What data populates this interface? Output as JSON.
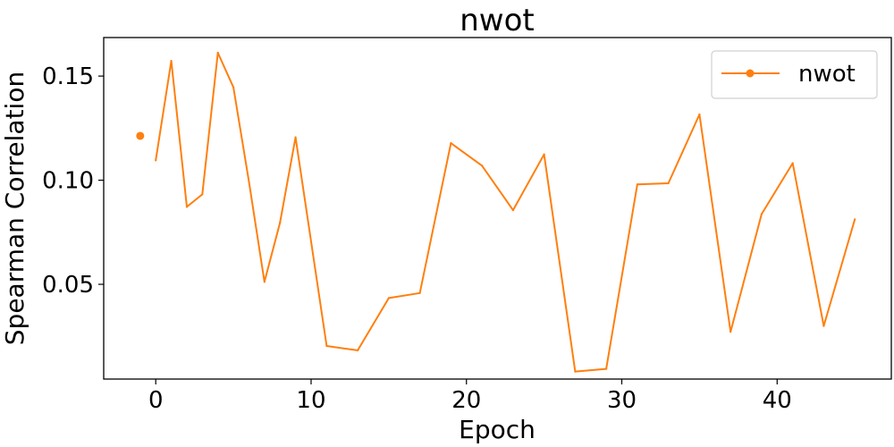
{
  "chart_data": {
    "type": "line",
    "title": "nwot",
    "xlabel": "Epoch",
    "ylabel": "Spearman Correlation",
    "xlim": [
      -3.35,
      47.35
    ],
    "ylim": [
      0.0045,
      0.1685
    ],
    "xticks": [
      0,
      10,
      20,
      30,
      40
    ],
    "xtick_labels": [
      "0",
      "10",
      "20",
      "30",
      "40"
    ],
    "yticks": [
      0.05,
      0.1,
      0.15
    ],
    "ytick_labels": [
      "0.05",
      "0.10",
      "0.15"
    ],
    "grid": false,
    "legend_position": "top-right",
    "series": [
      {
        "name": "nwot",
        "color": "#ff7f0e",
        "marker_point": {
          "x": -1,
          "y": 0.1213
        },
        "x": [
          0,
          1,
          2,
          3,
          4,
          5,
          6,
          7,
          8,
          9,
          11,
          13,
          15,
          17,
          19,
          21,
          23,
          25,
          27,
          29,
          31,
          33,
          35,
          37,
          39,
          41,
          43,
          45
        ],
        "y": [
          0.1095,
          0.1573,
          0.0872,
          0.0932,
          0.1612,
          0.1446,
          0.0992,
          0.0512,
          0.0796,
          0.1206,
          0.0204,
          0.0183,
          0.0434,
          0.0458,
          0.1178,
          0.107,
          0.0856,
          0.1124,
          0.0081,
          0.0094,
          0.098,
          0.0985,
          0.1316,
          0.0272,
          0.0837,
          0.1082,
          0.03,
          0.0812
        ]
      }
    ]
  }
}
